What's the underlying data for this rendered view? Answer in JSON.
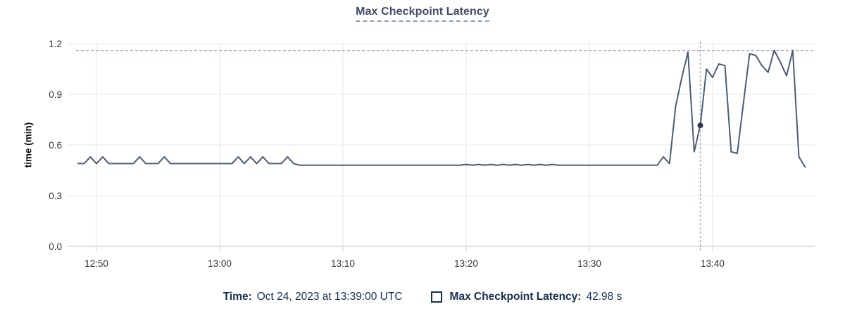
{
  "title": "Max Checkpoint Latency",
  "y_axis": {
    "label": "time (min)",
    "tick_labels": [
      "0.0",
      "0.3",
      "0.6",
      "0.9",
      "1.2"
    ],
    "tick_values": [
      0,
      0.3,
      0.6,
      0.9,
      1.2
    ]
  },
  "x_axis": {
    "tick_labels": [
      "12:50",
      "13:00",
      "13:10",
      "13:20",
      "13:30",
      "13:40"
    ],
    "tick_times": [
      "12:50:00",
      "13:00:00",
      "13:10:00",
      "13:20:00",
      "13:30:00",
      "13:40:00"
    ]
  },
  "tooltip": {
    "time_label": "Time:",
    "time_value": "Oct 24, 2023 at 13:39:00 UTC",
    "series_label": "Max Checkpoint Latency:",
    "series_value": "42.98 s"
  },
  "colors": {
    "line": "#4e5d73",
    "dot": "#2b3a52",
    "dashed": "#94a3b8",
    "grid": "#ececec",
    "axis": "#d7d7d7",
    "tick_text": "#333333",
    "title_text": "#3e4c66",
    "navy_text": "#16304f"
  },
  "chart_data": {
    "type": "line",
    "title": "Max Checkpoint Latency",
    "ylabel": "time (min)",
    "unit": "min",
    "ylim": [
      0,
      1.2
    ],
    "x_range": [
      "12:48:00",
      "13:48:00"
    ],
    "grid": true,
    "legend_position": "bottom",
    "series_name": "Max Checkpoint Latency",
    "x_start": "12:48:30",
    "x_step_seconds": 30,
    "values": [
      0.49,
      0.49,
      0.53,
      0.49,
      0.53,
      0.49,
      0.49,
      0.49,
      0.49,
      0.49,
      0.53,
      0.49,
      0.49,
      0.49,
      0.53,
      0.49,
      0.49,
      0.49,
      0.49,
      0.49,
      0.49,
      0.49,
      0.49,
      0.49,
      0.49,
      0.49,
      0.53,
      0.49,
      0.53,
      0.49,
      0.53,
      0.49,
      0.49,
      0.49,
      0.53,
      0.49,
      0.48,
      0.48,
      0.48,
      0.48,
      0.48,
      0.48,
      0.48,
      0.48,
      0.48,
      0.48,
      0.48,
      0.48,
      0.48,
      0.48,
      0.48,
      0.48,
      0.48,
      0.48,
      0.48,
      0.48,
      0.48,
      0.48,
      0.48,
      0.48,
      0.48,
      0.48,
      0.48,
      0.485,
      0.48,
      0.485,
      0.48,
      0.485,
      0.48,
      0.485,
      0.48,
      0.485,
      0.48,
      0.485,
      0.48,
      0.485,
      0.48,
      0.485,
      0.48,
      0.48,
      0.48,
      0.48,
      0.48,
      0.48,
      0.48,
      0.48,
      0.48,
      0.48,
      0.48,
      0.48,
      0.48,
      0.48,
      0.48,
      0.48,
      0.48,
      0.53,
      0.49,
      0.83,
      1.0,
      1.15,
      0.56,
      0.716,
      1.05,
      1.0,
      1.08,
      1.07,
      0.56,
      0.55,
      0.85,
      1.14,
      1.13,
      1.07,
      1.03,
      1.16,
      1.09,
      1.01,
      1.16,
      0.53,
      0.47
    ],
    "max_annotation_value": 1.16,
    "hover": {
      "time": "13:39:00",
      "value_min": 0.716,
      "value_label": "42.98 s"
    }
  }
}
